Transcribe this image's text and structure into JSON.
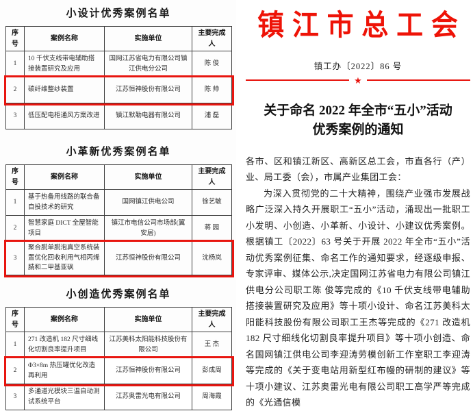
{
  "colors": {
    "accent_red": "#e8150f",
    "org_title_red": "#ee1307",
    "table_border": "#3c3c3c"
  },
  "tables": [
    {
      "title": "小设计优秀案例名单",
      "headers": [
        "序号",
        "案例名称",
        "实施单位",
        "主要完成人"
      ],
      "highlighted_row": 2,
      "rows": [
        {
          "no": "1",
          "case": "10 千伏支线带电辅助搭接装置研究及应用",
          "unit": "国网江苏省电力有限公司镇江供电分公司",
          "person": "陈 俊"
        },
        {
          "no": "2",
          "case": "碳纤维整纱装置",
          "unit": "江苏恒神股份有限公司",
          "person": "陈 帅"
        },
        {
          "no": "3",
          "case": "低压配电柜通风方案改进",
          "unit": "镇江默勒电器有限公司",
          "person": "浦 磊"
        }
      ]
    },
    {
      "title": "小革新优秀案例名单",
      "headers": [
        "序号",
        "案例名称",
        "实施单位",
        "主要完成人"
      ],
      "highlighted_row": 3,
      "rows": [
        {
          "no": "1",
          "case": "基于热备用线路的联合备自投技术的研究",
          "unit": "国网镇江供电公司",
          "person": "徐艺敏"
        },
        {
          "no": "2",
          "case": "智慧家庭 DICT 全屋智能项目",
          "unit": "镇江市电信公司市场部(翼安居)",
          "person": "蒋 园"
        },
        {
          "no": "3",
          "case": "聚合脱单脱泡真空系统装置优化回收利用气相丙烯腈和二甲基亚砜",
          "unit": "江苏恒神股份有限公司",
          "person": "沈杨岚"
        }
      ]
    },
    {
      "title": "小创造优秀案例名单",
      "headers": [
        "序号",
        "案例名称",
        "实施单位",
        "主要完成人"
      ],
      "highlighted_row": 2,
      "rows": [
        {
          "no": "1",
          "case": "271 改造机 182 尺寸细线化切割良率提升项目",
          "unit": "江苏美科太阳能科技股份有限公司",
          "person": "王 杰"
        },
        {
          "no": "2",
          "case": "Φ3×8m 热压罐优化改造再利用",
          "unit": "江苏恒神股份有限公司",
          "person": "彭成周"
        },
        {
          "no": "3",
          "case": "多通道光模块三温自动测试系统平台",
          "unit": "江苏奥雷光电有限公司",
          "person": "周海霞"
        }
      ]
    }
  ],
  "document": {
    "org_title": "镇 江 市 总 工 会",
    "doc_number": "镇工办〔2022〕86 号",
    "star": "★",
    "notice_title_line1": "关于命名 2022 年全市“五小”活动",
    "notice_title_line2": "优秀案例的通知",
    "salutation": "各市、区和镇江新区、高新区总工会，市直各行（产）业、局工委（会），市属产业集团工会：",
    "paragraph": "为深入贯彻党的二十大精神，围绕产业强市发展战略广泛深入持久开展职工“五小”活动，涌现出一批职工小发明、小创造、小革新、小设计、小建议优秀案例。根据镇工〔2022〕63 号关于开展 2022 年全市“五小”活动优秀案例征集、命名工作的通知要求，经逐级申报、专家评审、媒体公示,决定国网江苏省电力有限公司镇江供电分公司职工陈  俊等完成的《10 千伏支线带电辅助搭接装置研究及应用》等十项小设计、命名江苏美科太阳能科技股份有限公司职工王杰等完成的《271 改造机 182 尺寸细线化切割良率提升项目》等十项小创造、命名国网镇江供电公司李迎涛劳模创新工作室职工李迎涛等完成的《关于变电站用新型红布幔的研制的建议》等十项小建议、江苏奥雷光电有限公司职工高学严等完成的《光通信模"
  }
}
